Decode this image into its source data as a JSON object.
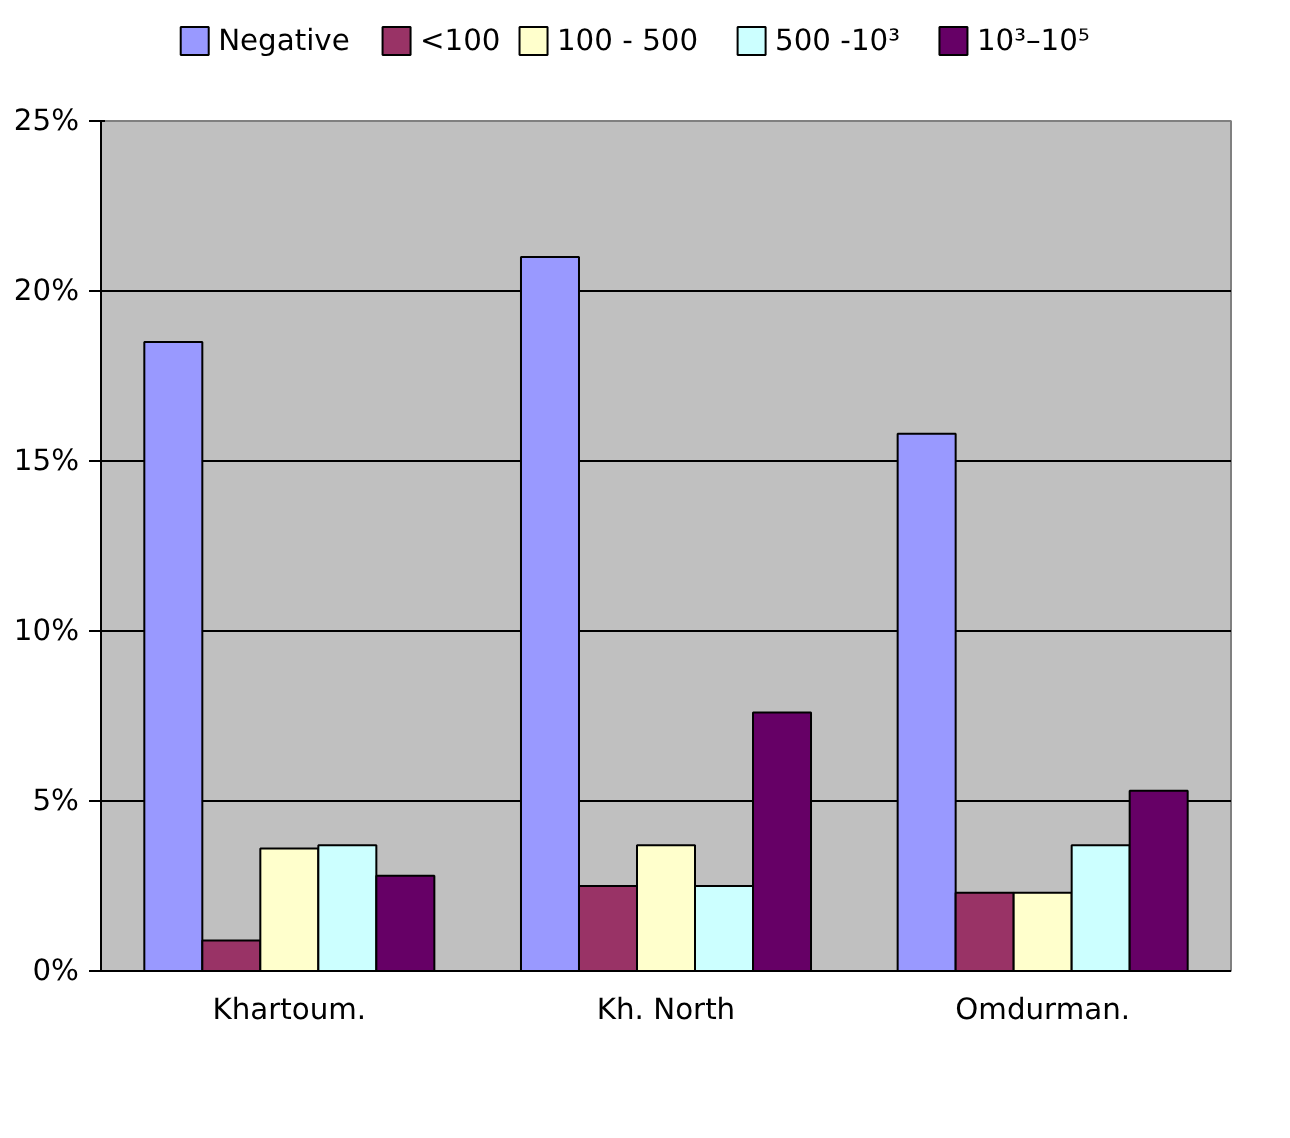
{
  "chart_data": {
    "type": "bar",
    "categories": [
      "Khartoum.",
      "Kh. North",
      "Omdurman."
    ],
    "series": [
      {
        "name": "Negative",
        "color": "#9999ff",
        "values": [
          18.5,
          21.0,
          15.8
        ]
      },
      {
        "name": "<100",
        "color": "#993366",
        "values": [
          0.9,
          2.5,
          2.3
        ]
      },
      {
        "name": "100 - 500",
        "color": "#ffffcc",
        "values": [
          3.6,
          3.7,
          2.3
        ]
      },
      {
        "name": "500 -10³",
        "color": "#ccffff",
        "values": [
          3.7,
          2.5,
          3.7
        ]
      },
      {
        "name": "10³–10⁵",
        "color": "#660066",
        "values": [
          2.8,
          7.6,
          5.3
        ]
      }
    ],
    "ylim": [
      0,
      25
    ],
    "yticks": [
      {
        "value": 0,
        "label": "0%"
      },
      {
        "value": 5,
        "label": "5%"
      },
      {
        "value": 10,
        "label": "10%"
      },
      {
        "value": 15,
        "label": "15%"
      },
      {
        "value": 20,
        "label": "20%"
      },
      {
        "value": 25,
        "label": "25%"
      }
    ],
    "grid": "y",
    "legend": "top"
  }
}
